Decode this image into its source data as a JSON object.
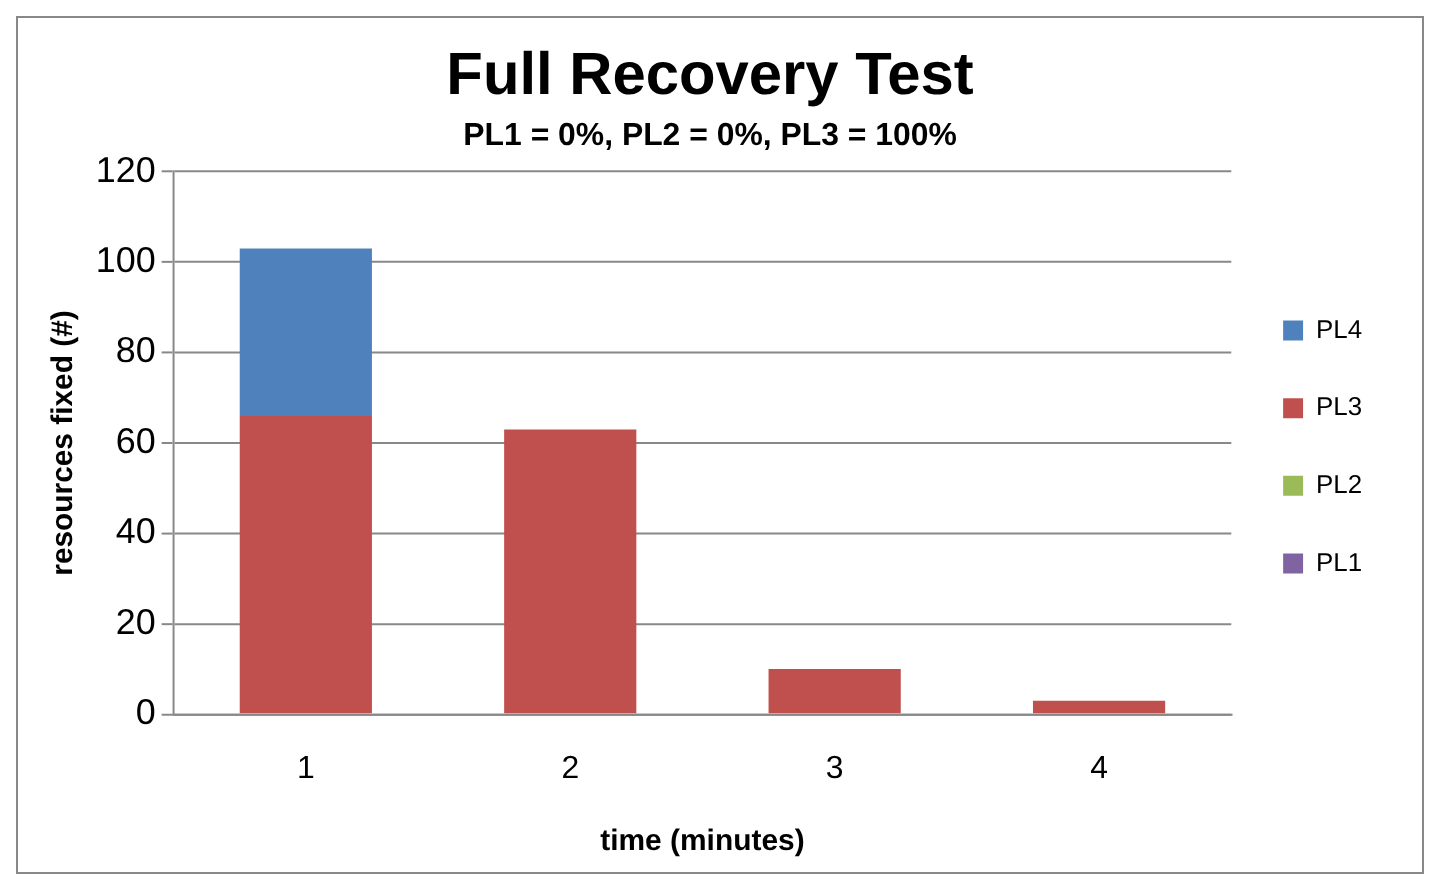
{
  "chart_data": {
    "type": "bar",
    "title": "Full Recovery Test",
    "subtitle": "PL1 = 0%, PL2 = 0%, PL3 = 100%",
    "xlabel": "time (minutes)",
    "ylabel": "resources fixed (#)",
    "categories": [
      "1",
      "2",
      "3",
      "4"
    ],
    "stacked": true,
    "series": [
      {
        "name": "PL1",
        "color": "#8064a2",
        "values": [
          0,
          0,
          0,
          0
        ]
      },
      {
        "name": "PL2",
        "color": "#9bbb59",
        "values": [
          0,
          0,
          0,
          0
        ]
      },
      {
        "name": "PL3",
        "color": "#c0504d",
        "values": [
          66,
          63,
          10,
          3
        ]
      },
      {
        "name": "PL4",
        "color": "#4f81bd",
        "values": [
          37,
          0,
          0,
          0
        ]
      }
    ],
    "ylim": [
      0,
      120
    ],
    "yticks": [
      0,
      20,
      40,
      60,
      80,
      100,
      120
    ],
    "grid": "y",
    "legend": "right"
  }
}
